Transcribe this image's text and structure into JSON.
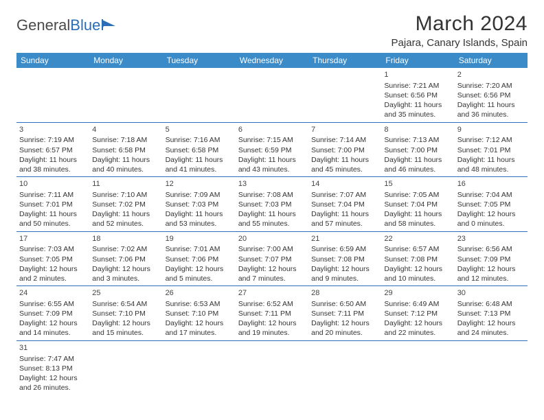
{
  "brand": {
    "name1": "General",
    "name2": "Blue"
  },
  "title": "March 2024",
  "location": "Pajara, Canary Islands, Spain",
  "theme": {
    "header_bg": "#3b8bc9",
    "header_text": "#ffffff",
    "divider": "#2a6db8",
    "text": "#333333",
    "brand_gray": "#4a4a4a",
    "brand_blue": "#2a6db8"
  },
  "day_names": [
    "Sunday",
    "Monday",
    "Tuesday",
    "Wednesday",
    "Thursday",
    "Friday",
    "Saturday"
  ],
  "weeks": [
    [
      null,
      null,
      null,
      null,
      null,
      {
        "d": "1",
        "r": "7:21 AM",
        "s": "6:56 PM",
        "l": "11 hours and 35 minutes."
      },
      {
        "d": "2",
        "r": "7:20 AM",
        "s": "6:56 PM",
        "l": "11 hours and 36 minutes."
      }
    ],
    [
      {
        "d": "3",
        "r": "7:19 AM",
        "s": "6:57 PM",
        "l": "11 hours and 38 minutes."
      },
      {
        "d": "4",
        "r": "7:18 AM",
        "s": "6:58 PM",
        "l": "11 hours and 40 minutes."
      },
      {
        "d": "5",
        "r": "7:16 AM",
        "s": "6:58 PM",
        "l": "11 hours and 41 minutes."
      },
      {
        "d": "6",
        "r": "7:15 AM",
        "s": "6:59 PM",
        "l": "11 hours and 43 minutes."
      },
      {
        "d": "7",
        "r": "7:14 AM",
        "s": "7:00 PM",
        "l": "11 hours and 45 minutes."
      },
      {
        "d": "8",
        "r": "7:13 AM",
        "s": "7:00 PM",
        "l": "11 hours and 46 minutes."
      },
      {
        "d": "9",
        "r": "7:12 AM",
        "s": "7:01 PM",
        "l": "11 hours and 48 minutes."
      }
    ],
    [
      {
        "d": "10",
        "r": "7:11 AM",
        "s": "7:01 PM",
        "l": "11 hours and 50 minutes."
      },
      {
        "d": "11",
        "r": "7:10 AM",
        "s": "7:02 PM",
        "l": "11 hours and 52 minutes."
      },
      {
        "d": "12",
        "r": "7:09 AM",
        "s": "7:03 PM",
        "l": "11 hours and 53 minutes."
      },
      {
        "d": "13",
        "r": "7:08 AM",
        "s": "7:03 PM",
        "l": "11 hours and 55 minutes."
      },
      {
        "d": "14",
        "r": "7:07 AM",
        "s": "7:04 PM",
        "l": "11 hours and 57 minutes."
      },
      {
        "d": "15",
        "r": "7:05 AM",
        "s": "7:04 PM",
        "l": "11 hours and 58 minutes."
      },
      {
        "d": "16",
        "r": "7:04 AM",
        "s": "7:05 PM",
        "l": "12 hours and 0 minutes."
      }
    ],
    [
      {
        "d": "17",
        "r": "7:03 AM",
        "s": "7:05 PM",
        "l": "12 hours and 2 minutes."
      },
      {
        "d": "18",
        "r": "7:02 AM",
        "s": "7:06 PM",
        "l": "12 hours and 3 minutes."
      },
      {
        "d": "19",
        "r": "7:01 AM",
        "s": "7:06 PM",
        "l": "12 hours and 5 minutes."
      },
      {
        "d": "20",
        "r": "7:00 AM",
        "s": "7:07 PM",
        "l": "12 hours and 7 minutes."
      },
      {
        "d": "21",
        "r": "6:59 AM",
        "s": "7:08 PM",
        "l": "12 hours and 9 minutes."
      },
      {
        "d": "22",
        "r": "6:57 AM",
        "s": "7:08 PM",
        "l": "12 hours and 10 minutes."
      },
      {
        "d": "23",
        "r": "6:56 AM",
        "s": "7:09 PM",
        "l": "12 hours and 12 minutes."
      }
    ],
    [
      {
        "d": "24",
        "r": "6:55 AM",
        "s": "7:09 PM",
        "l": "12 hours and 14 minutes."
      },
      {
        "d": "25",
        "r": "6:54 AM",
        "s": "7:10 PM",
        "l": "12 hours and 15 minutes."
      },
      {
        "d": "26",
        "r": "6:53 AM",
        "s": "7:10 PM",
        "l": "12 hours and 17 minutes."
      },
      {
        "d": "27",
        "r": "6:52 AM",
        "s": "7:11 PM",
        "l": "12 hours and 19 minutes."
      },
      {
        "d": "28",
        "r": "6:50 AM",
        "s": "7:11 PM",
        "l": "12 hours and 20 minutes."
      },
      {
        "d": "29",
        "r": "6:49 AM",
        "s": "7:12 PM",
        "l": "12 hours and 22 minutes."
      },
      {
        "d": "30",
        "r": "6:48 AM",
        "s": "7:13 PM",
        "l": "12 hours and 24 minutes."
      }
    ],
    [
      {
        "d": "31",
        "r": "7:47 AM",
        "s": "8:13 PM",
        "l": "12 hours and 26 minutes."
      },
      null,
      null,
      null,
      null,
      null,
      null
    ]
  ],
  "labels": {
    "sunrise": "Sunrise:",
    "sunset": "Sunset:",
    "daylight": "Daylight:"
  }
}
